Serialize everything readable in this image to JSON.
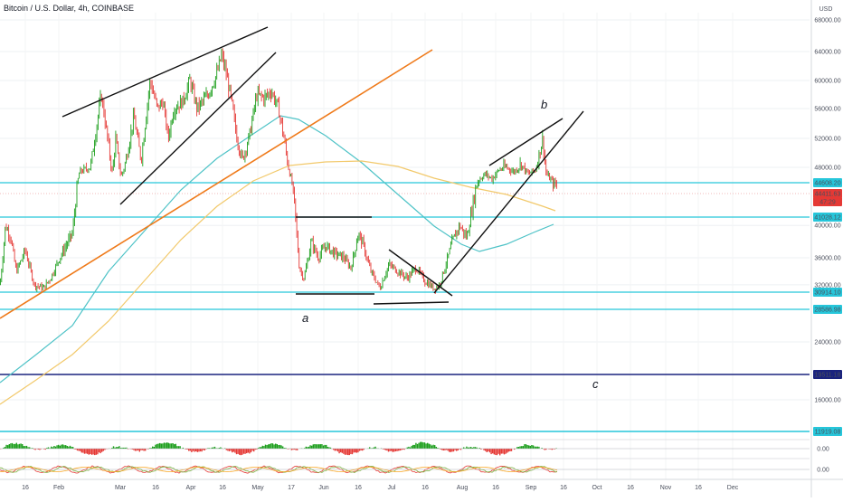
{
  "header": {
    "title": "Bitcoin / U.S. Dollar, 4h, COINBASE"
  },
  "chart_data": {
    "type": "candlestick",
    "title": "Bitcoin / U.S. Dollar, 4h, COINBASE",
    "axis_unit": "USD",
    "y_ticks": [
      68000,
      64000,
      60000,
      56000,
      52000,
      48000,
      40000,
      36000,
      32000,
      24000,
      16000
    ],
    "x_ticks": [
      "16",
      "Feb",
      "Mar",
      "16",
      "Apr",
      "16",
      "May",
      "17",
      "Jun",
      "16",
      "Jul",
      "16",
      "Aug",
      "16",
      "Sep",
      "16",
      "Oct",
      "16",
      "Nov",
      "16",
      "Dec"
    ],
    "price_badges": [
      {
        "value": "44608.20",
        "color": "#26c6da"
      },
      {
        "value": "44411.63",
        "color": "#e53935"
      },
      {
        "value": "47:29",
        "color": "#e53935"
      },
      {
        "value": "41028.12",
        "color": "#26c6da"
      },
      {
        "value": "30914.10",
        "color": "#26c6da"
      },
      {
        "value": "28586.98",
        "color": "#26c6da"
      },
      {
        "value": "19511.18",
        "color": "#1a237e"
      },
      {
        "value": "11919.08",
        "color": "#26c6da"
      }
    ],
    "wave_labels": [
      "a",
      "b",
      "c"
    ],
    "indicator_values": [
      "0.00",
      "0.00"
    ],
    "colors": {
      "up": "#1b9e1b",
      "down": "#e53935",
      "ma_fast": "#4fc3c7",
      "ma_slow": "#f2c96b",
      "trend_orange": "#ef7a1a",
      "level_cyan": "#26c6da",
      "level_navy": "#1a237e"
    }
  }
}
